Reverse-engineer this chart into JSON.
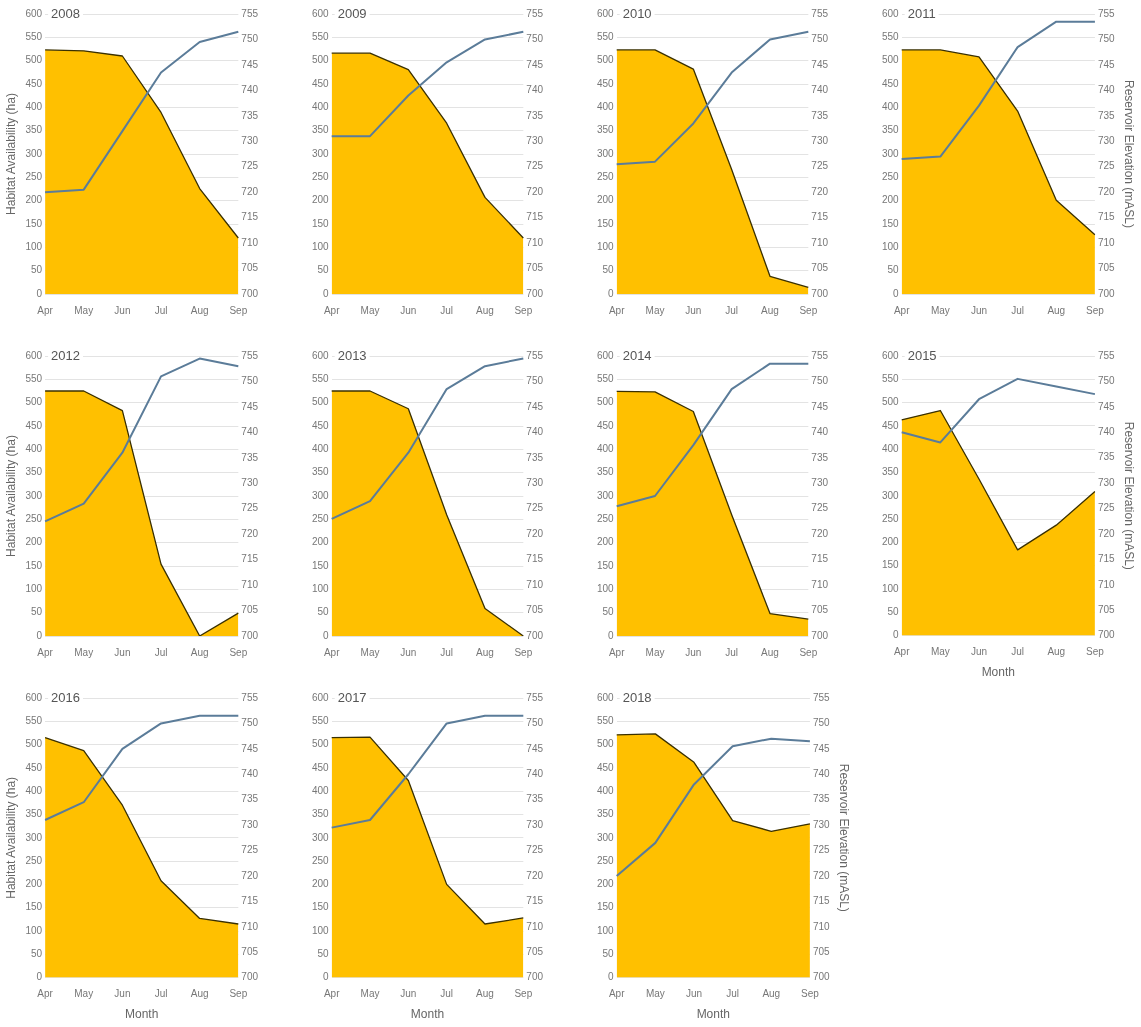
{
  "chart_data": [
    {
      "type": "area",
      "title": "2008",
      "ylabel": "Habitat Availability (ha)",
      "categories": [
        "Apr",
        "May",
        "Jun",
        "Jul",
        "Aug",
        "Sep"
      ],
      "ylim": [
        0,
        600
      ],
      "yticks": [
        0,
        50,
        100,
        150,
        200,
        250,
        300,
        350,
        400,
        450,
        500,
        550,
        600
      ],
      "y2lim": [
        700,
        755
      ],
      "y2ticks": [
        700,
        705,
        710,
        715,
        720,
        725,
        730,
        735,
        740,
        745,
        750,
        755
      ],
      "grid": "y",
      "series": [
        {
          "type": "area",
          "color": "#ffc000",
          "values": [
            523,
            521,
            510,
            389,
            226,
            120
          ]
        },
        {
          "type": "line",
          "axis": "y2",
          "color": "#5b7c99",
          "values": [
            720,
            720.5,
            732,
            743.5,
            749.5,
            751.5
          ]
        }
      ]
    },
    {
      "type": "area",
      "title": "2009",
      "categories": [
        "Apr",
        "May",
        "Jun",
        "Jul",
        "Aug",
        "Sep"
      ],
      "ylim": [
        0,
        600
      ],
      "yticks": [
        0,
        50,
        100,
        150,
        200,
        250,
        300,
        350,
        400,
        450,
        500,
        550,
        600
      ],
      "y2lim": [
        700,
        755
      ],
      "y2ticks": [
        700,
        705,
        710,
        715,
        720,
        725,
        730,
        735,
        740,
        745,
        750,
        755
      ],
      "grid": "y",
      "series": [
        {
          "type": "area",
          "color": "#ffc000",
          "values": [
            516,
            516,
            481,
            366,
            207,
            120
          ]
        },
        {
          "type": "line",
          "axis": "y2",
          "color": "#5b7c99",
          "values": [
            731,
            731,
            739,
            745.5,
            750,
            751.5
          ]
        }
      ]
    },
    {
      "type": "area",
      "title": "2010",
      "categories": [
        "Apr",
        "May",
        "Jun",
        "Jul",
        "Aug",
        "Sep"
      ],
      "ylim": [
        0,
        600
      ],
      "yticks": [
        0,
        50,
        100,
        150,
        200,
        250,
        300,
        350,
        400,
        450,
        500,
        550,
        600
      ],
      "y2lim": [
        700,
        755
      ],
      "y2ticks": [
        700,
        705,
        710,
        715,
        720,
        725,
        730,
        735,
        740,
        745,
        750,
        755
      ],
      "grid": "y",
      "series": [
        {
          "type": "area",
          "color": "#ffc000",
          "values": [
            523,
            523,
            482,
            267,
            38,
            14
          ]
        },
        {
          "type": "line",
          "axis": "y2",
          "color": "#5b7c99",
          "values": [
            725.5,
            726,
            733.5,
            743.5,
            750,
            751.5
          ]
        }
      ]
    },
    {
      "type": "area",
      "title": "2011",
      "y2label": "Reservoir Elevation (mASL)",
      "categories": [
        "Apr",
        "May",
        "Jun",
        "Jul",
        "Aug",
        "Sep"
      ],
      "ylim": [
        0,
        600
      ],
      "yticks": [
        0,
        50,
        100,
        150,
        200,
        250,
        300,
        350,
        400,
        450,
        500,
        550,
        600
      ],
      "y2lim": [
        700,
        755
      ],
      "y2ticks": [
        700,
        705,
        710,
        715,
        720,
        725,
        730,
        735,
        740,
        745,
        750,
        755
      ],
      "grid": "y",
      "series": [
        {
          "type": "area",
          "color": "#ffc000",
          "values": [
            523,
            523,
            508,
            392,
            201,
            127
          ]
        },
        {
          "type": "line",
          "axis": "y2",
          "color": "#5b7c99",
          "values": [
            726.5,
            727,
            737,
            748.5,
            753.5,
            753.5
          ]
        }
      ]
    },
    {
      "type": "area",
      "title": "2012",
      "ylabel": "Habitat Availability (ha)",
      "categories": [
        "Apr",
        "May",
        "Jun",
        "Jul",
        "Aug",
        "Sep"
      ],
      "ylim": [
        0,
        600
      ],
      "yticks": [
        0,
        50,
        100,
        150,
        200,
        250,
        300,
        350,
        400,
        450,
        500,
        550,
        600
      ],
      "y2lim": [
        700,
        755
      ],
      "y2ticks": [
        700,
        705,
        710,
        715,
        720,
        725,
        730,
        735,
        740,
        745,
        750,
        755
      ],
      "grid": "y",
      "series": [
        {
          "type": "area",
          "color": "#ffc000",
          "values": [
            525,
            525,
            483,
            154,
            0,
            49
          ]
        },
        {
          "type": "line",
          "axis": "y2",
          "color": "#5b7c99",
          "values": [
            722.5,
            726,
            736,
            751,
            754.5,
            753
          ]
        }
      ]
    },
    {
      "type": "area",
      "title": "2013",
      "categories": [
        "Apr",
        "May",
        "Jun",
        "Jul",
        "Aug",
        "Sep"
      ],
      "ylim": [
        0,
        600
      ],
      "yticks": [
        0,
        50,
        100,
        150,
        200,
        250,
        300,
        350,
        400,
        450,
        500,
        550,
        600
      ],
      "y2lim": [
        700,
        755
      ],
      "y2ticks": [
        700,
        705,
        710,
        715,
        720,
        725,
        730,
        735,
        740,
        745,
        750,
        755
      ],
      "grid": "y",
      "series": [
        {
          "type": "area",
          "color": "#ffc000",
          "values": [
            525,
            525,
            487,
            260,
            59,
            0
          ]
        },
        {
          "type": "line",
          "axis": "y2",
          "color": "#5b7c99",
          "values": [
            723,
            726.5,
            736,
            748.5,
            753,
            754.5
          ]
        }
      ]
    },
    {
      "type": "area",
      "title": "2014",
      "categories": [
        "Apr",
        "May",
        "Jun",
        "Jul",
        "Aug",
        "Sep"
      ],
      "ylim": [
        0,
        600
      ],
      "yticks": [
        0,
        50,
        100,
        150,
        200,
        250,
        300,
        350,
        400,
        450,
        500,
        550,
        600
      ],
      "y2lim": [
        700,
        755
      ],
      "y2ticks": [
        700,
        705,
        710,
        715,
        720,
        725,
        730,
        735,
        740,
        745,
        750,
        755
      ],
      "grid": "y",
      "series": [
        {
          "type": "area",
          "color": "#ffc000",
          "values": [
            524,
            523,
            481,
            260,
            48,
            36
          ]
        },
        {
          "type": "line",
          "axis": "y2",
          "color": "#5b7c99",
          "values": [
            725.5,
            727.5,
            737.5,
            748.5,
            753.5,
            753.5
          ]
        }
      ]
    },
    {
      "type": "area",
      "title": "2015",
      "xlabel": "Month",
      "y2label": "Reservoir Elevation (mASL)",
      "categories": [
        "Apr",
        "May",
        "Jun",
        "Jul",
        "Aug",
        "Sep"
      ],
      "ylim": [
        0,
        600
      ],
      "yticks": [
        0,
        50,
        100,
        150,
        200,
        250,
        300,
        350,
        400,
        450,
        500,
        550,
        600
      ],
      "y2lim": [
        700,
        755
      ],
      "y2ticks": [
        700,
        705,
        710,
        715,
        720,
        725,
        730,
        735,
        740,
        745,
        750,
        755
      ],
      "grid": "y",
      "series": [
        {
          "type": "area",
          "color": "#ffc000",
          "values": [
            463,
            483,
            336,
            184,
            237,
            309
          ]
        },
        {
          "type": "line",
          "axis": "y2",
          "color": "#5b7c99",
          "values": [
            740,
            738,
            746.5,
            750.5,
            749,
            747.5
          ]
        }
      ]
    },
    {
      "type": "area",
      "title": "2016",
      "xlabel": "Month",
      "ylabel": "Habitat Availability (ha)",
      "categories": [
        "Apr",
        "May",
        "Jun",
        "Jul",
        "Aug",
        "Sep"
      ],
      "ylim": [
        0,
        600
      ],
      "yticks": [
        0,
        50,
        100,
        150,
        200,
        250,
        300,
        350,
        400,
        450,
        500,
        550,
        600
      ],
      "y2lim": [
        700,
        755
      ],
      "y2ticks": [
        700,
        705,
        710,
        715,
        720,
        725,
        730,
        735,
        740,
        745,
        750,
        755
      ],
      "grid": "y",
      "series": [
        {
          "type": "area",
          "color": "#ffc000",
          "values": [
            515,
            487,
            370,
            208,
            127,
            115
          ]
        },
        {
          "type": "line",
          "axis": "y2",
          "color": "#5b7c99",
          "values": [
            731,
            734.5,
            745,
            750,
            751.5,
            751.5
          ]
        }
      ]
    },
    {
      "type": "area",
      "title": "2017",
      "xlabel": "Month",
      "categories": [
        "Apr",
        "May",
        "Jun",
        "Jul",
        "Aug",
        "Sep"
      ],
      "ylim": [
        0,
        600
      ],
      "yticks": [
        0,
        50,
        100,
        150,
        200,
        250,
        300,
        350,
        400,
        450,
        500,
        550,
        600
      ],
      "y2lim": [
        700,
        755
      ],
      "y2ticks": [
        700,
        705,
        710,
        715,
        720,
        725,
        730,
        735,
        740,
        745,
        750,
        755
      ],
      "grid": "y",
      "series": [
        {
          "type": "area",
          "color": "#ffc000",
          "values": [
            515,
            516,
            423,
            200,
            115,
            128
          ]
        },
        {
          "type": "line",
          "axis": "y2",
          "color": "#5b7c99",
          "values": [
            729.5,
            731,
            740,
            750,
            751.5,
            751.5
          ]
        }
      ]
    },
    {
      "type": "area",
      "title": "2018",
      "xlabel": "Month",
      "y2label": "Reservoir Elevation (mASL)",
      "categories": [
        "Apr",
        "May",
        "Jun",
        "Jul",
        "Aug",
        "Sep"
      ],
      "ylim": [
        0,
        600
      ],
      "yticks": [
        0,
        50,
        100,
        150,
        200,
        250,
        300,
        350,
        400,
        450,
        500,
        550,
        600
      ],
      "y2lim": [
        700,
        755
      ],
      "y2ticks": [
        700,
        705,
        710,
        715,
        720,
        725,
        730,
        735,
        740,
        745,
        750,
        755
      ],
      "grid": "y",
      "series": [
        {
          "type": "area",
          "color": "#ffc000",
          "values": [
            521,
            523,
            462,
            337,
            314,
            330
          ]
        },
        {
          "type": "line",
          "axis": "y2",
          "color": "#5b7c99",
          "values": [
            720,
            726.5,
            738,
            745.5,
            747,
            746.5
          ]
        }
      ]
    }
  ]
}
